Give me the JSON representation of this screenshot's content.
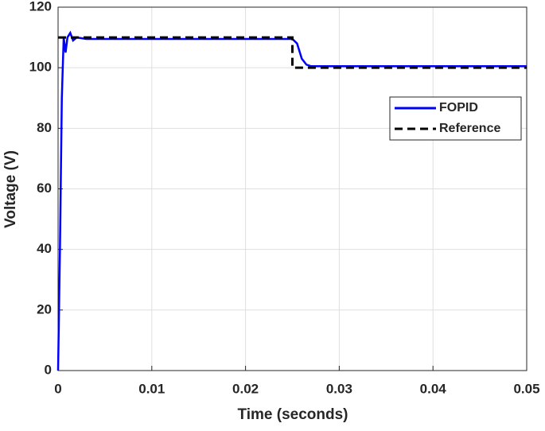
{
  "chart_data": {
    "type": "line",
    "xlabel": "Time (seconds)",
    "ylabel": "Voltage (V)",
    "xlim": [
      0,
      0.05
    ],
    "xticks": [
      0,
      0.01,
      0.02,
      0.03,
      0.04,
      0.05
    ],
    "ylim": [
      0,
      120
    ],
    "yticks": [
      0,
      20,
      40,
      60,
      80,
      100,
      120
    ],
    "grid": true,
    "legend": "upper right",
    "series": [
      {
        "name": "FOPID",
        "color": "#0000ff",
        "dash": "solid",
        "x": [
          0,
          0.0002,
          0.0004,
          0.0006,
          0.0008,
          0.001,
          0.0013,
          0.0016,
          0.002,
          0.003,
          0.01,
          0.02,
          0.025,
          0.0255,
          0.026,
          0.0265,
          0.027,
          0.03,
          0.04,
          0.05
        ],
        "values": [
          0,
          40,
          90,
          110,
          105,
          110,
          111.5,
          109,
          110,
          109.5,
          109.5,
          109.5,
          109.5,
          108,
          103,
          101,
          100.5,
          100.5,
          100.5,
          100.5
        ]
      },
      {
        "name": "Reference",
        "color": "#000000",
        "dash": "dashed",
        "x": [
          0,
          0.025,
          0.025,
          0.05
        ],
        "values": [
          110,
          110,
          100,
          100
        ]
      }
    ]
  }
}
